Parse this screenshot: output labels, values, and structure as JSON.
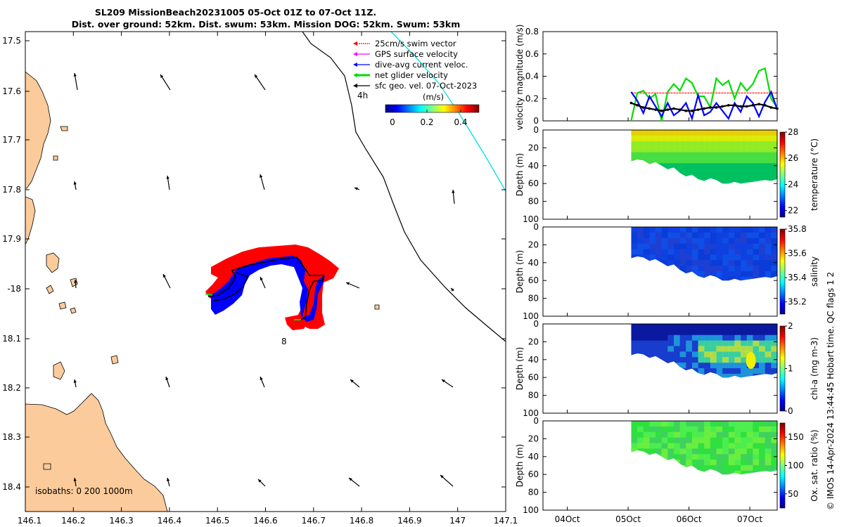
{
  "title": {
    "line1": "SL209 MissionBeach20231005 05-Oct 01Z to 07-Oct 11Z.",
    "line2": "Dist. over ground: 52km. Dist. swum: 53km. Mission DOG: 52km. Swum: 53km"
  },
  "map": {
    "lon_ticks": [
      "146.1",
      "146.2",
      "146.3",
      "146.4",
      "146.5",
      "146.6",
      "146.7",
      "146.8",
      "146.9",
      "147",
      "147.1"
    ],
    "lat_ticks": [
      "17.5",
      "17.6",
      "17.7",
      "17.8",
      "17.9",
      "-18",
      "18.1",
      "18.2",
      "18.3",
      "18.4"
    ],
    "xlim": [
      146.1,
      147.1
    ],
    "ylim": [
      -18.45,
      -17.47
    ],
    "legend": [
      {
        "label": "25cm/s swim vector",
        "color": "#ff0000"
      },
      {
        "label": "GPS surface velocity",
        "color": "#ff00ff"
      },
      {
        "label": "dive-avg current veloc.",
        "color": "#0000ff"
      },
      {
        "label": "net glider velocity",
        "color": "#00dd00"
      },
      {
        "label": "sfc geo. vel. 07-Oct-2023",
        "color": "#000000"
      }
    ],
    "colorbar_label": "(m/s)",
    "colorbar_ticks": [
      "0",
      "0.2",
      "0.4"
    ],
    "annot_4h": "4h",
    "annot_8": "8",
    "isobaths_label": "isobaths: 0 200 1000m",
    "colors": {
      "land": "#fbcb9b",
      "track_red": "#ff0000",
      "track_blue": "#0000ff",
      "isobath": "#000000",
      "cyan_line": "#00e0e0"
    }
  },
  "panels": {
    "date_ticks": [
      "04Oct",
      "05Oct",
      "06Oct",
      "07Oct"
    ],
    "velocity": {
      "ylabel": "velocity magnitude (m/s)",
      "yticks": [
        "0",
        "0.2",
        "0.4",
        "0.6",
        "0.8"
      ],
      "ylim": [
        0,
        0.8
      ]
    },
    "depth_label": "Depth (m)",
    "depth_ticks": [
      "0",
      "20",
      "40",
      "60",
      "80",
      "100"
    ],
    "temperature": {
      "cb_label": "temperature (°C)",
      "cb_ticks": [
        "22",
        "24",
        "26",
        "28"
      ],
      "range": [
        21.5,
        28
      ]
    },
    "salinity": {
      "cb_label": "salinity",
      "cb_ticks": [
        "35.2",
        "35.4",
        "35.6",
        "35.8"
      ],
      "range": [
        35.1,
        35.8
      ]
    },
    "chla": {
      "cb_label": "chl-a (mg m-3)",
      "cb_ticks": [
        "0",
        "1",
        "2"
      ],
      "range": [
        0,
        2
      ]
    },
    "oxygen": {
      "cb_label": "Ox. sat. ratio (%)",
      "cb_ticks": [
        "50",
        "100",
        "150"
      ],
      "range": [
        25,
        175
      ]
    }
  },
  "footer": "© IMOS 14-Apr-2024 13:44:45 Hobart time. QC flags 1  2",
  "chart_data": [
    {
      "type": "line",
      "title": "",
      "ylabel": "velocity magnitude (m/s)",
      "ylim": [
        0,
        0.8
      ],
      "x_days": [
        5.05,
        5.15,
        5.25,
        5.35,
        5.45,
        5.55,
        5.65,
        5.75,
        5.85,
        5.95,
        6.05,
        6.15,
        6.25,
        6.35,
        6.45,
        6.55,
        6.65,
        6.75,
        6.85,
        6.95,
        7.05,
        7.15,
        7.25,
        7.35,
        7.45
      ],
      "series": [
        {
          "name": "25cm/s swim vector",
          "color": "#ff0000",
          "values": [
            0.25,
            0.25,
            0.25,
            0.25,
            0.25,
            0.25,
            0.25,
            0.25,
            0.25,
            0.25,
            0.25,
            0.25,
            0.25,
            0.25,
            0.25,
            0.25,
            0.25,
            0.25,
            0.25,
            0.25,
            0.25,
            0.25,
            0.25,
            0.25,
            0.25
          ]
        },
        {
          "name": "net glider velocity",
          "color": "#00dd00",
          "values": [
            0.0,
            0.25,
            0.27,
            0.2,
            0.24,
            0.0,
            0.26,
            0.33,
            0.27,
            0.38,
            0.34,
            0.22,
            0.22,
            0.12,
            0.38,
            0.32,
            0.36,
            0.2,
            0.34,
            0.27,
            0.33,
            0.45,
            0.47,
            0.2,
            0.12
          ]
        },
        {
          "name": "dive-avg current veloc.",
          "color": "#0000ff",
          "values": [
            0.26,
            0.18,
            0.07,
            0.22,
            0.13,
            0.04,
            0.16,
            0.05,
            0.09,
            0.16,
            0.02,
            0.23,
            0.05,
            0.08,
            0.16,
            0.09,
            0.02,
            0.16,
            0.08,
            0.22,
            0.16,
            0.04,
            0.17,
            0.26,
            0.1
          ]
        },
        {
          "name": "sfc geo. vel.",
          "color": "#000000",
          "values": [
            0.16,
            0.14,
            0.12,
            0.11,
            0.1,
            0.09,
            0.1,
            0.11,
            0.1,
            0.09,
            0.09,
            0.1,
            0.11,
            0.12,
            0.12,
            0.13,
            0.14,
            0.14,
            0.13,
            0.13,
            0.14,
            0.15,
            0.14,
            0.12,
            0.11
          ]
        }
      ]
    },
    {
      "type": "heatmap",
      "ylabel": "Depth (m)",
      "variables": [
        "temperature (°C)",
        "salinity",
        "chl-a (mg m-3)",
        "Ox. sat. ratio (%)"
      ],
      "x_range_days": [
        5.05,
        7.45
      ],
      "max_depth_profile": [
        35,
        33,
        34,
        38,
        36,
        40,
        44,
        42,
        48,
        52,
        50,
        55,
        57,
        54,
        56,
        60,
        60,
        58,
        60,
        59,
        58,
        57,
        56,
        57,
        55
      ]
    }
  ]
}
